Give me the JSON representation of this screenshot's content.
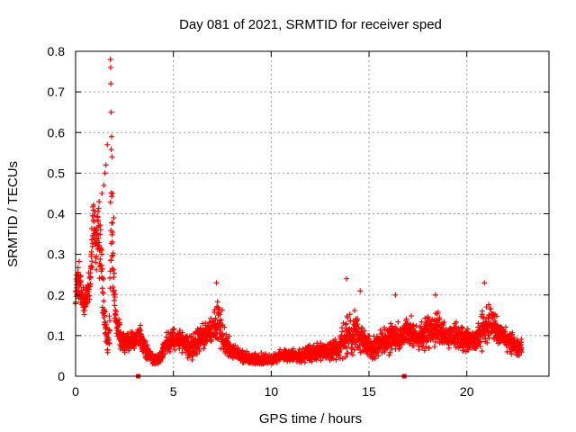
{
  "chart_data": {
    "type": "scatter",
    "title": "Day 081 of 2021, SRMTID for receiver sped",
    "xlabel": "GPS time / hours",
    "ylabel": "SRMTID / TECUs",
    "xlim": [
      0,
      24.2
    ],
    "ylim": [
      0,
      0.8
    ],
    "xticks": [
      0,
      5,
      10,
      15,
      20
    ],
    "yticks": [
      0,
      0.1,
      0.2,
      0.3,
      0.4,
      0.5,
      0.6,
      0.7,
      0.8
    ],
    "xtick_labels": [
      "0",
      "5",
      "10",
      "15",
      "20"
    ],
    "ytick_labels": [
      "0",
      "0.1",
      "0.2",
      "0.3",
      "0.4",
      "0.5",
      "0.6",
      "0.7",
      "0.8"
    ],
    "grid": true,
    "marker": "plus",
    "color": "#ff0000",
    "point_spacing_hours": 0.008,
    "envelope": {
      "x": [
        0.0,
        0.1,
        0.25,
        0.4,
        0.55,
        0.7,
        0.8,
        0.95,
        1.05,
        1.15,
        1.3,
        1.45,
        1.55,
        1.65,
        1.75,
        1.8,
        1.85,
        1.95,
        2.05,
        2.3,
        2.6,
        3.0,
        3.3,
        3.6,
        4.0,
        4.3,
        4.6,
        5.0,
        5.5,
        6.0,
        6.5,
        7.0,
        7.3,
        7.6,
        8.0,
        8.5,
        9.0,
        9.5,
        10.0,
        10.5,
        11.0,
        11.5,
        12.0,
        12.5,
        13.0,
        13.5,
        13.9,
        14.2,
        14.5,
        14.8,
        15.2,
        15.6,
        16.0,
        16.5,
        17.0,
        17.5,
        18.0,
        18.5,
        19.0,
        19.5,
        20.0,
        20.5,
        20.9,
        21.2,
        21.5,
        21.9,
        22.3,
        22.8
      ],
      "center": [
        0.2,
        0.24,
        0.22,
        0.18,
        0.19,
        0.21,
        0.3,
        0.38,
        0.33,
        0.36,
        0.28,
        0.16,
        0.1,
        0.09,
        0.12,
        0.4,
        0.36,
        0.22,
        0.14,
        0.09,
        0.08,
        0.09,
        0.1,
        0.06,
        0.04,
        0.04,
        0.08,
        0.09,
        0.08,
        0.07,
        0.1,
        0.11,
        0.14,
        0.09,
        0.06,
        0.05,
        0.04,
        0.04,
        0.04,
        0.05,
        0.05,
        0.05,
        0.06,
        0.06,
        0.06,
        0.07,
        0.1,
        0.11,
        0.1,
        0.08,
        0.07,
        0.08,
        0.09,
        0.1,
        0.11,
        0.1,
        0.11,
        0.12,
        0.1,
        0.1,
        0.09,
        0.09,
        0.12,
        0.13,
        0.11,
        0.1,
        0.08,
        0.07
      ],
      "spread": [
        0.05,
        0.06,
        0.06,
        0.05,
        0.05,
        0.06,
        0.08,
        0.1,
        0.1,
        0.12,
        0.1,
        0.07,
        0.05,
        0.06,
        0.08,
        0.25,
        0.2,
        0.1,
        0.06,
        0.04,
        0.03,
        0.03,
        0.04,
        0.03,
        0.02,
        0.02,
        0.04,
        0.04,
        0.04,
        0.04,
        0.04,
        0.05,
        0.08,
        0.05,
        0.03,
        0.02,
        0.02,
        0.02,
        0.02,
        0.02,
        0.02,
        0.02,
        0.03,
        0.03,
        0.03,
        0.04,
        0.08,
        0.08,
        0.06,
        0.04,
        0.04,
        0.04,
        0.05,
        0.05,
        0.05,
        0.05,
        0.05,
        0.05,
        0.04,
        0.04,
        0.04,
        0.04,
        0.07,
        0.06,
        0.05,
        0.04,
        0.04,
        0.03
      ]
    },
    "peaks": [
      {
        "x": 1.78,
        "y": 0.78
      },
      {
        "x": 1.79,
        "y": 0.76
      },
      {
        "x": 1.8,
        "y": 0.72
      },
      {
        "x": 1.82,
        "y": 0.65
      },
      {
        "x": 1.84,
        "y": 0.59
      },
      {
        "x": 1.86,
        "y": 0.54
      },
      {
        "x": 1.62,
        "y": 0.57
      },
      {
        "x": 1.55,
        "y": 0.52
      },
      {
        "x": 1.5,
        "y": 0.5
      },
      {
        "x": 1.45,
        "y": 0.47
      },
      {
        "x": 1.9,
        "y": 0.45
      },
      {
        "x": 1.95,
        "y": 0.39
      },
      {
        "x": 1.35,
        "y": 0.45
      },
      {
        "x": 1.2,
        "y": 0.43
      },
      {
        "x": 7.2,
        "y": 0.23
      },
      {
        "x": 13.85,
        "y": 0.24
      },
      {
        "x": 14.55,
        "y": 0.21
      },
      {
        "x": 16.35,
        "y": 0.2
      },
      {
        "x": 18.4,
        "y": 0.2
      },
      {
        "x": 20.9,
        "y": 0.23
      }
    ],
    "gap_markers": [
      {
        "x": 3.2,
        "y": 0.0
      },
      {
        "x": 16.8,
        "y": 0.0
      }
    ]
  }
}
